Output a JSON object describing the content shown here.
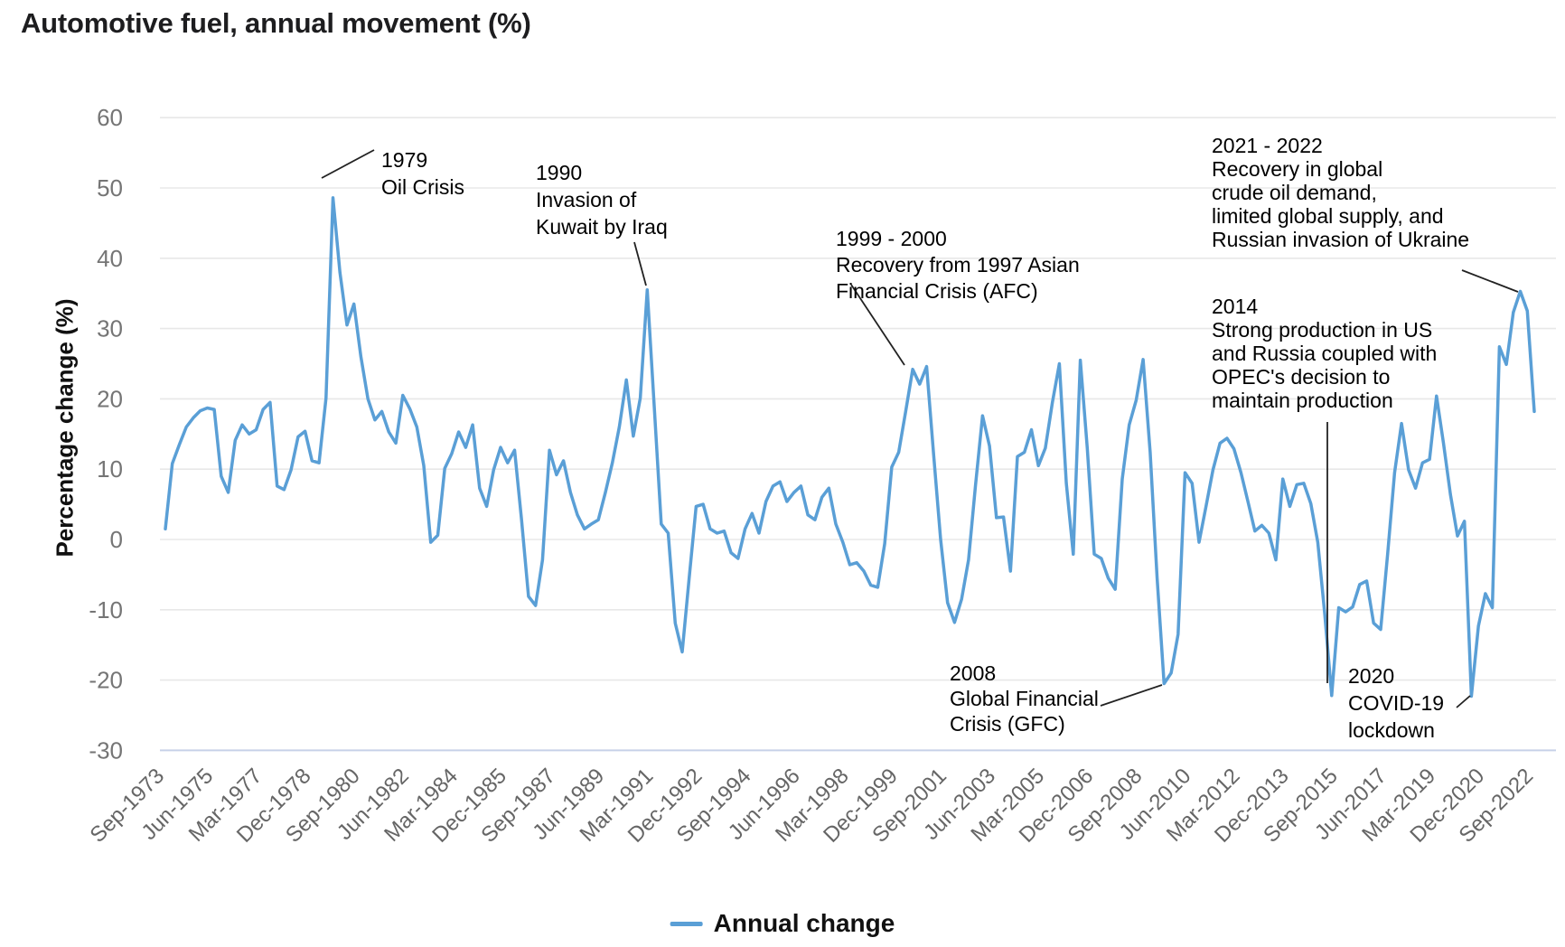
{
  "chart_data": {
    "type": "line",
    "title": "Automotive fuel, annual movement (%)",
    "ylabel": "Percentage change (%)",
    "xlabel": "",
    "legend_position": "bottom-center",
    "grid": true,
    "series_name": "Annual change",
    "frequency": "quarterly",
    "x_start": "Sep-1973",
    "x_end": "Sep-2022",
    "ylim": [
      -30,
      60
    ],
    "y_ticks": [
      60,
      50,
      40,
      30,
      20,
      10,
      0,
      -10,
      -20,
      -30
    ],
    "x_tick_labels": [
      "Sep-1973",
      "Jun-1975",
      "Mar-1977",
      "Dec-1978",
      "Sep-1980",
      "Jun-1982",
      "Mar-1984",
      "Dec-1985",
      "Sep-1987",
      "Jun-1989",
      "Mar-1991",
      "Dec-1992",
      "Sep-1994",
      "Jun-1996",
      "Mar-1998",
      "Dec-1999",
      "Sep-2001",
      "Jun-2003",
      "Mar-2005",
      "Dec-2006",
      "Sep-2008",
      "Jun-2010",
      "Mar-2012",
      "Dec-2013",
      "Sep-2015",
      "Jun-2017",
      "Mar-2019",
      "Dec-2020",
      "Sep-2022"
    ],
    "values": [
      1.5,
      10.8,
      13.5,
      16.0,
      17.3,
      18.3,
      18.7,
      18.5,
      9.0,
      6.7,
      14.1,
      16.3,
      15.0,
      15.6,
      18.5,
      19.5,
      7.6,
      7.1,
      9.9,
      14.6,
      15.4,
      11.2,
      10.9,
      20.1,
      48.6,
      38.0,
      30.5,
      33.5,
      26.0,
      20.0,
      17.0,
      18.2,
      15.3,
      13.7,
      20.5,
      18.6,
      16.0,
      10.5,
      -0.4,
      0.6,
      10.1,
      12.2,
      15.3,
      13.1,
      16.3,
      7.3,
      4.7,
      9.9,
      13.1,
      10.9,
      12.7,
      2.8,
      -8.1,
      -9.4,
      -2.9,
      12.7,
      9.2,
      11.2,
      6.7,
      3.5,
      1.5,
      2.2,
      2.8,
      6.7,
      10.9,
      16.0,
      22.7,
      14.7,
      20.1,
      35.5,
      18.8,
      2.2,
      0.9,
      -11.9,
      -16.0,
      -5.5,
      4.7,
      5.0,
      1.5,
      0.9,
      1.2,
      -1.9,
      -2.7,
      1.5,
      3.7,
      0.9,
      5.4,
      7.6,
      8.2,
      5.4,
      6.7,
      7.6,
      3.5,
      2.8,
      6.0,
      7.3,
      2.2,
      -0.4,
      -3.6,
      -3.3,
      -4.5,
      -6.5,
      -6.8,
      -0.6,
      10.3,
      12.4,
      18.2,
      24.2,
      22.1,
      24.6,
      12.0,
      0.0,
      -9.0,
      -11.8,
      -8.5,
      -2.9,
      7.7,
      17.6,
      13.3,
      3.1,
      3.2,
      -4.5,
      11.8,
      12.4,
      15.6,
      10.5,
      13.0,
      19.5,
      25.0,
      8.0,
      -2.1,
      25.5,
      13.0,
      -2.1,
      -2.7,
      -5.5,
      -7.1,
      8.6,
      16.3,
      19.8,
      25.6,
      12.4,
      -5.5,
      -20.5,
      -19.0,
      -13.5,
      9.5,
      8.0,
      -0.4,
      4.7,
      9.9,
      13.7,
      14.4,
      12.9,
      9.5,
      5.4,
      1.2,
      2.0,
      0.9,
      -2.9,
      8.6,
      4.7,
      7.8,
      8.0,
      5.1,
      -0.4,
      -10.6,
      -22.2,
      -9.7,
      -10.3,
      -9.6,
      -6.4,
      -5.9,
      -11.9,
      -12.8,
      -2.1,
      9.5,
      16.5,
      9.9,
      7.3,
      10.9,
      11.4,
      20.4,
      13.7,
      6.4,
      0.5,
      2.6,
      -22.3,
      -12.3,
      -7.7,
      -9.7,
      27.4,
      24.9,
      32.3,
      35.3,
      32.5,
      18.2
    ],
    "annotations": [
      {
        "id": "oil-crisis-1979",
        "text": "1979\nOil Crisis"
      },
      {
        "id": "kuwait-1990",
        "text": "1990\nInvasion of\nKuwait by Iraq"
      },
      {
        "id": "afc-recovery-1999-2000",
        "text": "1999 - 2000\nRecovery from 1997 Asian\nFinancial Crisis (AFC)"
      },
      {
        "id": "gfc-2008",
        "text": "2008\nGlobal Financial\nCrisis (GFC)"
      },
      {
        "id": "opec-2014",
        "text": "2014\nStrong production in US\nand Russia coupled with\nOPEC's decision to\nmaintain production"
      },
      {
        "id": "covid-2020",
        "text": "2020\nCOVID-19\nlockdown"
      },
      {
        "id": "ukraine-2021-2022",
        "text": "2021 - 2022\nRecovery in global\ncrude oil demand,\nlimited global supply, and\nRussian invasion of Ukraine"
      }
    ]
  },
  "legend": {
    "label": "Annual change"
  },
  "colors": {
    "accent": "#5A9FD6",
    "grid": "#e8e8e8",
    "baseline": "#c7d1e8",
    "y_tick_text": "#757575",
    "x_tick_text": "#666666",
    "annotation_text": "#000000",
    "leader_line": "#222222"
  }
}
